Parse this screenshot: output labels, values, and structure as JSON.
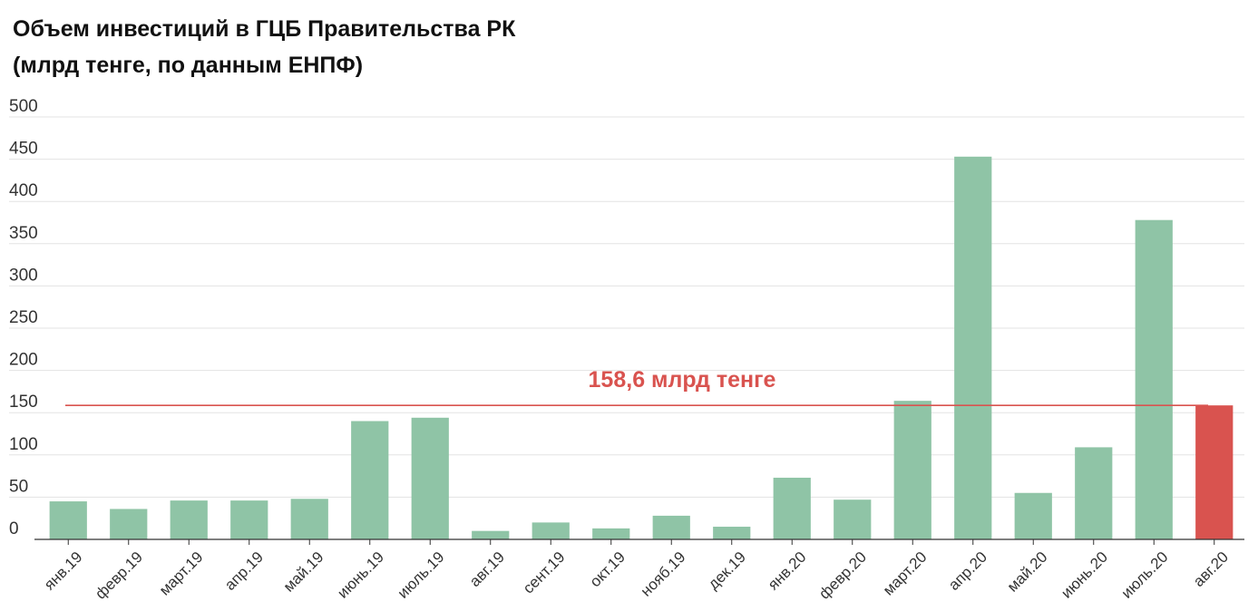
{
  "chart_data": {
    "type": "bar",
    "title": "Объем инвестиций в ГЦБ Правительства РК",
    "subtitle": "(млрд тенге, по данным ЕНПФ)",
    "xlabel": "",
    "ylabel": "",
    "ylim": [
      0,
      500
    ],
    "yticks": [
      0,
      50,
      100,
      150,
      200,
      250,
      300,
      350,
      400,
      450,
      500
    ],
    "grid": true,
    "categories": [
      "янв.19",
      "февр.19",
      "март.19",
      "апр.19",
      "май.19",
      "июнь.19",
      "июль.19",
      "авг.19",
      "сент.19",
      "окт.19",
      "нояб.19",
      "дек.19",
      "янв.20",
      "февр.20",
      "март.20",
      "апр.20",
      "май.20",
      "июнь.20",
      "июль.20",
      "авг.20"
    ],
    "values": [
      45,
      36,
      46,
      46,
      48,
      140,
      144,
      10,
      20,
      13,
      28,
      15,
      73,
      47,
      164,
      453,
      55,
      109,
      378,
      158.6
    ],
    "bar_color": "#8fc4a6",
    "highlight_color": "#d9534f",
    "highlight_index": 19,
    "reference_line": {
      "value": 158.6,
      "label": "158,6 млрд тенге",
      "color": "#d9534f"
    }
  }
}
